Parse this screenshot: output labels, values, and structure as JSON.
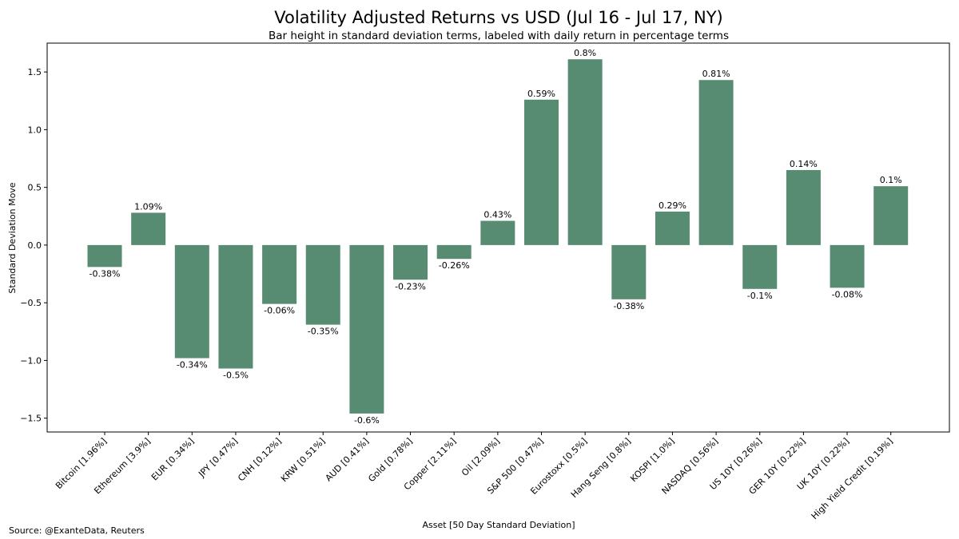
{
  "source_note": "Source: @ExanteData, Reuters",
  "chart_data": {
    "type": "bar",
    "title": "Volatility Adjusted Returns vs USD (Jul 16 - Jul 17, NY)",
    "subtitle": "Bar height in standard deviation terms, labeled with daily return in percentage terms",
    "xlabel": "Asset [50 Day Standard Deviation]",
    "ylabel": "Standard Deviation Move",
    "ylim": [
      -1.62,
      1.75
    ],
    "yticks": [
      -1.5,
      -1.0,
      -0.5,
      0.0,
      0.5,
      1.0,
      1.5
    ],
    "ytick_labels": [
      "−1.5",
      "−1.0",
      "−0.5",
      "0.0",
      "0.5",
      "1.0",
      "1.5"
    ],
    "bar_color": "#578c73",
    "grid": false,
    "categories": [
      "Bitcoin [1.96%]",
      "Ethereum [3.9%]",
      "EUR [0.34%]",
      "JPY [0.47%]",
      "CNH [0.12%]",
      "KRW [0.51%]",
      "AUD [0.41%]",
      "Gold [0.78%]",
      "Copper [2.11%]",
      "Oil [2.09%]",
      "S&P 500 [0.47%]",
      "Eurostoxx [0.5%]",
      "Hang Seng [0.8%]",
      "KOSPI [1.0%]",
      "NASDAQ [0.56%]",
      "US 10Y [0.26%]",
      "GER 10Y [0.22%]",
      "UK 10Y [0.22%]",
      "High Yield Credit [0.19%]"
    ],
    "values": [
      -0.19,
      0.28,
      -0.98,
      -1.07,
      -0.51,
      -0.69,
      -1.46,
      -0.3,
      -0.12,
      0.21,
      1.26,
      1.61,
      -0.47,
      0.29,
      1.43,
      -0.38,
      0.65,
      -0.37,
      0.51
    ],
    "data_labels": [
      "-0.38%",
      "1.09%",
      "-0.34%",
      "-0.5%",
      "-0.06%",
      "-0.35%",
      "-0.6%",
      "-0.23%",
      "-0.26%",
      "0.43%",
      "0.59%",
      "0.8%",
      "-0.38%",
      "0.29%",
      "0.81%",
      "-0.1%",
      "0.14%",
      "-0.08%",
      "0.1%"
    ]
  }
}
